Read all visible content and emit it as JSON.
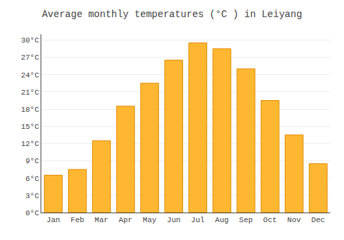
{
  "chart_data": {
    "type": "bar",
    "title": "Average monthly temperatures (°C ) in Leiyang",
    "categories": [
      "Jan",
      "Feb",
      "Mar",
      "Apr",
      "May",
      "Jun",
      "Jul",
      "Aug",
      "Sep",
      "Oct",
      "Nov",
      "Dec"
    ],
    "values": [
      6.5,
      7.5,
      12.5,
      18.5,
      22.5,
      26.5,
      29.5,
      28.5,
      25.0,
      19.5,
      13.5,
      8.5
    ],
    "color": "#FFB732",
    "ylim": [
      0,
      31
    ],
    "yticks": [
      {
        "value": 0,
        "label": "0°C"
      },
      {
        "value": 3,
        "label": "3°C"
      },
      {
        "value": 6,
        "label": "6°C"
      },
      {
        "value": 9,
        "label": "9°C"
      },
      {
        "value": 12,
        "label": "12°C"
      },
      {
        "value": 15,
        "label": "15°C"
      },
      {
        "value": 18,
        "label": "18°C"
      },
      {
        "value": 21,
        "label": "21°C"
      },
      {
        "value": 24,
        "label": "24°C"
      },
      {
        "value": 27,
        "label": "27°C"
      },
      {
        "value": 30,
        "label": "30°C"
      }
    ],
    "grid": true
  }
}
